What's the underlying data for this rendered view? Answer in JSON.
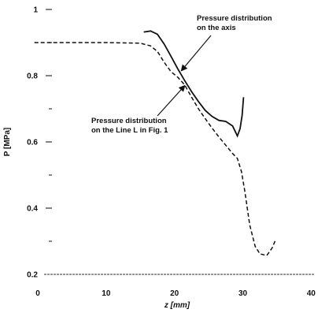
{
  "chart_data": {
    "type": "line",
    "xlabel": "z [mm]",
    "ylabel": "P [MPa]",
    "xlim": [
      -3,
      41
    ],
    "ylim": [
      0.2,
      1.0
    ],
    "x_ticks": [
      0,
      10,
      20,
      30,
      40
    ],
    "x_tick_labels": [
      "0",
      "10",
      "20",
      "30",
      "40"
    ],
    "y_ticks": [
      0.2,
      0.4,
      0.6,
      0.8,
      1.0
    ],
    "y_tick_labels": [
      "0.2",
      "0.4",
      "0.6",
      "0.8",
      "1"
    ],
    "y_minor_ticks": [
      0.3,
      0.5,
      0.7,
      0.9
    ],
    "grid": false,
    "legend": "none",
    "series": [
      {
        "style": "solid",
        "points": [
          [
            15.5,
            0.932
          ],
          [
            16.5,
            0.935
          ],
          [
            17.5,
            0.925
          ],
          [
            18.5,
            0.895
          ],
          [
            19.5,
            0.858
          ],
          [
            20.5,
            0.82
          ],
          [
            21.5,
            0.785
          ],
          [
            22.5,
            0.752
          ],
          [
            23.5,
            0.722
          ],
          [
            24.5,
            0.695
          ],
          [
            25.5,
            0.677
          ],
          [
            26.5,
            0.665
          ],
          [
            27.5,
            0.662
          ],
          [
            28.5,
            0.648
          ],
          [
            29.2,
            0.618
          ],
          [
            29.6,
            0.64
          ],
          [
            29.9,
            0.68
          ],
          [
            30.1,
            0.735
          ]
        ]
      },
      {
        "style": "dashed",
        "points": [
          [
            -0.5,
            0.9
          ],
          [
            5,
            0.9
          ],
          [
            10,
            0.9
          ],
          [
            15,
            0.898
          ],
          [
            16.5,
            0.89
          ],
          [
            17.5,
            0.873
          ],
          [
            18.5,
            0.84
          ],
          [
            19.5,
            0.812
          ],
          [
            20.5,
            0.795
          ],
          [
            21.5,
            0.772
          ],
          [
            22.5,
            0.735
          ],
          [
            23.5,
            0.7
          ],
          [
            24.5,
            0.67
          ],
          [
            25.5,
            0.642
          ],
          [
            26.5,
            0.615
          ],
          [
            27.5,
            0.59
          ],
          [
            28.5,
            0.565
          ],
          [
            29.2,
            0.55
          ],
          [
            29.8,
            0.51
          ],
          [
            30.3,
            0.45
          ],
          [
            31.0,
            0.35
          ],
          [
            31.8,
            0.285
          ],
          [
            32.5,
            0.262
          ],
          [
            33.5,
            0.257
          ],
          [
            34.3,
            0.28
          ],
          [
            34.8,
            0.305
          ]
        ]
      }
    ],
    "baseline": {
      "y": 0.2
    },
    "annotations": [
      {
        "id": "axis",
        "lines": [
          "Pressure distribution",
          "on the axis"
        ],
        "arrow_to": [
          21.0,
          0.815
        ]
      },
      {
        "id": "line_l",
        "lines": [
          "Pressure distribution",
          "on the Line L in Fig. 1"
        ],
        "arrow_to": [
          21.5,
          0.77
        ]
      }
    ],
    "colors": {
      "line": "#111111",
      "axis": "#333333",
      "text": "#111111"
    }
  }
}
